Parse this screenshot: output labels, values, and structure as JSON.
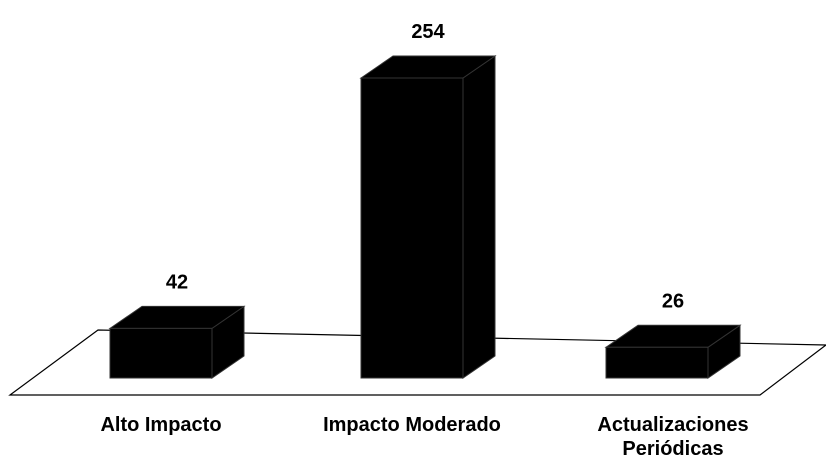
{
  "chart_data": {
    "type": "bar3d",
    "categories": [
      "Alto Impacto",
      "Impacto Moderado",
      "Actualizaciones Periódicas"
    ],
    "values": [
      42,
      254,
      26
    ],
    "color": "#000000"
  }
}
